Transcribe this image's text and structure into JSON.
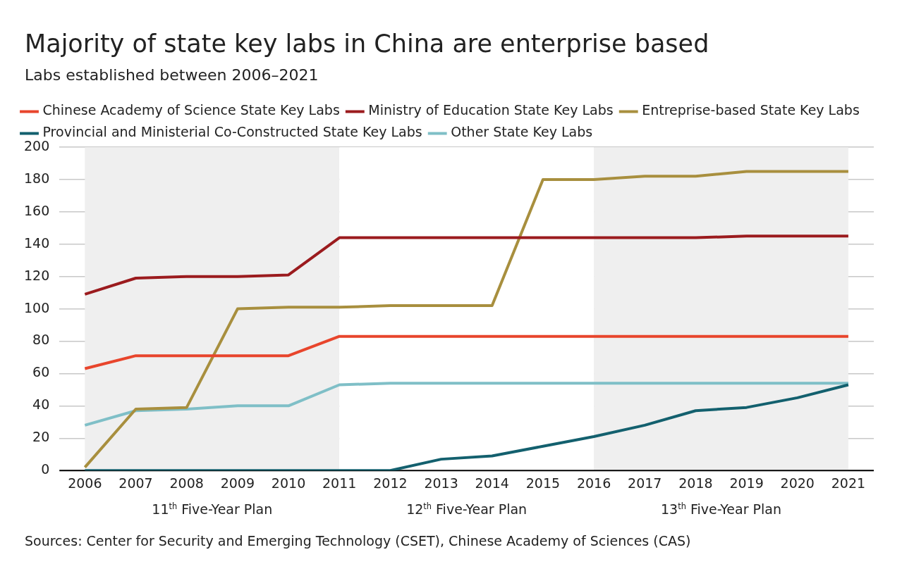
{
  "chart_data": {
    "type": "line",
    "title": "Majority of state key labs in China are enterprise based",
    "subtitle": "Labs established between 2006–2021",
    "categories": [
      "2006",
      "2007",
      "2008",
      "2009",
      "2010",
      "2011",
      "2012",
      "2013",
      "2014",
      "2015",
      "2016",
      "2017",
      "2018",
      "2019",
      "2020",
      "2021"
    ],
    "series": [
      {
        "name": "Chinese Academy of Science State Key Labs",
        "color": "#e8452c",
        "values": [
          63,
          71,
          71,
          71,
          71,
          83,
          83,
          83,
          83,
          83,
          83,
          83,
          83,
          83,
          83,
          83
        ]
      },
      {
        "name": "Ministry of Education State Key Labs",
        "color": "#9b1b1e",
        "values": [
          109,
          119,
          120,
          120,
          121,
          144,
          144,
          144,
          144,
          144,
          144,
          144,
          144,
          145,
          145,
          145
        ]
      },
      {
        "name": "Entreprise-based State Key Labs",
        "color": "#a88f3e",
        "values": [
          2,
          38,
          39,
          100,
          101,
          101,
          102,
          102,
          102,
          180,
          180,
          182,
          182,
          185,
          185,
          185
        ]
      },
      {
        "name": "Provincial and Ministerial Co-Constructed State Key Labs",
        "color": "#13606e",
        "values": [
          0,
          0,
          0,
          0,
          0,
          0,
          0,
          7,
          9,
          15,
          21,
          28,
          37,
          39,
          45,
          53
        ]
      },
      {
        "name": "Other State Key Labs",
        "color": "#7fbfc7",
        "values": [
          28,
          37,
          38,
          40,
          40,
          53,
          54,
          54,
          54,
          54,
          54,
          54,
          54,
          54,
          54,
          54
        ]
      }
    ],
    "ylim": [
      0,
      200
    ],
    "yticks": [
      0,
      20,
      40,
      60,
      80,
      100,
      120,
      140,
      160,
      180,
      200
    ],
    "grid": "y",
    "legend": "top",
    "marker": "none",
    "line_style": "solid",
    "bands": [
      {
        "axis": "x",
        "from": "2006",
        "to": "2011",
        "label": "11$^{th}$ Five-Year Plan",
        "color": "#efefef"
      },
      {
        "axis": "x",
        "from": "2011",
        "to": "2016",
        "label": "12$^{th}$ Five-Year Plan",
        "color": "#ffffff"
      },
      {
        "axis": "x",
        "from": "2016",
        "to": "2021",
        "label": "13$^{th}$ Five-Year Plan",
        "color": "#efefef"
      }
    ],
    "annotations": [
      "Sources: Center for Security and Emerging Technology (CSET), Chinese Academy of Sciences (CAS)"
    ]
  }
}
